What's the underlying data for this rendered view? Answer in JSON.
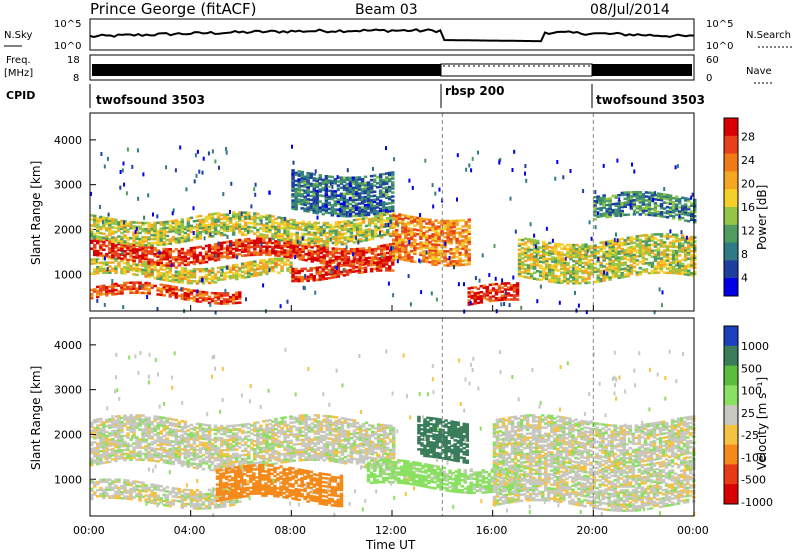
{
  "header": {
    "station": "Prince George (fitACF)",
    "beam": "Beam 03",
    "date": "08/Jul/2014"
  },
  "top_panel": {
    "left_label": "N.Sky",
    "left_ticks": [
      "10^5",
      "10^0"
    ],
    "right_ticks": [
      "10^5",
      "10^0"
    ],
    "right_label": "N.Search"
  },
  "freq_panel": {
    "left_label_1": "Freq.",
    "left_label_2": "[MHz]",
    "left_ticks": [
      "18",
      "8"
    ],
    "right_ticks": [
      "60",
      "0"
    ],
    "right_label": "Nave"
  },
  "cpid_panel": {
    "label": "CPID",
    "segments": [
      {
        "name": "twofsound 3503",
        "start_hour": 0,
        "end_hour": 14
      },
      {
        "name": "rbsp 200",
        "start_hour": 14,
        "end_hour": 20
      },
      {
        "name": "twofsound 3503",
        "start_hour": 20,
        "end_hour": 24
      }
    ]
  },
  "x_axis": {
    "ticks": [
      "00:00",
      "04:00",
      "08:00",
      "12:00",
      "16:00",
      "20:00",
      "00:00"
    ],
    "label": "Time UT"
  },
  "power_colorbar": {
    "label": "Power [dB]",
    "ticks": [
      "28",
      "24",
      "20",
      "16",
      "12",
      "8",
      "4"
    ]
  },
  "velocity_colorbar": {
    "label": "Velocity [m s⁻¹]",
    "ticks": [
      "1000",
      "500",
      "100",
      "25",
      "-25",
      "-100",
      "-500",
      "-1000"
    ]
  },
  "chart_data": [
    {
      "type": "heatmap",
      "title": "",
      "xlabel": "Time UT",
      "ylabel": "Slant Range [km]",
      "xlim": [
        0,
        24
      ],
      "ylim": [
        180,
        4600
      ],
      "y_ticks": [
        1000,
        2000,
        3000,
        4000
      ],
      "x_ticks_hours": [
        0,
        4,
        8,
        12,
        16,
        20,
        24
      ],
      "colorbar": {
        "label": "Power [dB]",
        "range": [
          0,
          30
        ],
        "ticks": [
          4,
          8,
          12,
          16,
          20,
          24,
          28
        ],
        "colors": [
          "#0000e6",
          "#1e3fa0",
          "#2e7b86",
          "#4e9c62",
          "#93c547",
          "#f5d02a",
          "#f5a623",
          "#f07a1a",
          "#e8401c",
          "#d80000"
        ]
      },
      "bands": [
        {
          "t0": 0,
          "t1": 6,
          "r0": 450,
          "r1": 700,
          "level": 0.82
        },
        {
          "t0": 0,
          "t1": 8,
          "r0": 900,
          "r1": 1250,
          "level": 0.55
        },
        {
          "t0": 0,
          "t1": 12,
          "r0": 1300,
          "r1": 1700,
          "level": 0.88
        },
        {
          "t0": 0,
          "t1": 12,
          "r0": 1750,
          "r1": 2250,
          "level": 0.5
        },
        {
          "t0": 8,
          "t1": 12,
          "r0": 950,
          "r1": 1250,
          "level": 0.9
        },
        {
          "t0": 12,
          "t1": 15,
          "r0": 1300,
          "r1": 2300,
          "level": 0.72
        },
        {
          "t0": 15,
          "t1": 17,
          "r0": 300,
          "r1": 700,
          "level": 0.92
        },
        {
          "t0": 17,
          "t1": 24,
          "r0": 900,
          "r1": 1800,
          "level": 0.5
        },
        {
          "t0": 20,
          "t1": 24,
          "r0": 2200,
          "r1": 2700,
          "level": 0.3
        },
        {
          "t0": 8,
          "t1": 12,
          "r0": 2400,
          "r1": 3300,
          "level": 0.25
        }
      ]
    },
    {
      "type": "heatmap",
      "title": "",
      "xlabel": "Time UT",
      "ylabel": "Slant Range [km]",
      "xlim": [
        0,
        24
      ],
      "ylim": [
        180,
        4600
      ],
      "y_ticks": [
        1000,
        2000,
        3000,
        4000
      ],
      "x_ticks_hours": [
        0,
        4,
        8,
        12,
        16,
        20,
        24
      ],
      "colorbar": {
        "label": "Velocity [m s⁻¹]",
        "values": [
          1000,
          500,
          100,
          25,
          -25,
          -100,
          -500,
          -1000
        ],
        "colors": [
          "#1c3fbf",
          "#3a7d5a",
          "#5bbd3c",
          "#8ae060",
          "#c8c8c0",
          "#f5c242",
          "#f58a1a",
          "#e83a15",
          "#d80000"
        ]
      },
      "bands": [
        {
          "t0": 0,
          "t1": 12,
          "r0": 1300,
          "r1": 2300,
          "v": 0
        },
        {
          "t0": 0,
          "t1": 6,
          "r0": 450,
          "r1": 900,
          "v": 0
        },
        {
          "t0": 5,
          "t1": 10,
          "r0": 500,
          "r1": 1200,
          "v": -150
        },
        {
          "t0": 13,
          "t1": 15,
          "r0": 1400,
          "r1": 2300,
          "v": 600
        },
        {
          "t0": 11,
          "t1": 17,
          "r0": 800,
          "r1": 1300,
          "v": 60
        },
        {
          "t0": 16,
          "t1": 24,
          "r0": 400,
          "r1": 2300,
          "v": 0
        }
      ]
    }
  ]
}
